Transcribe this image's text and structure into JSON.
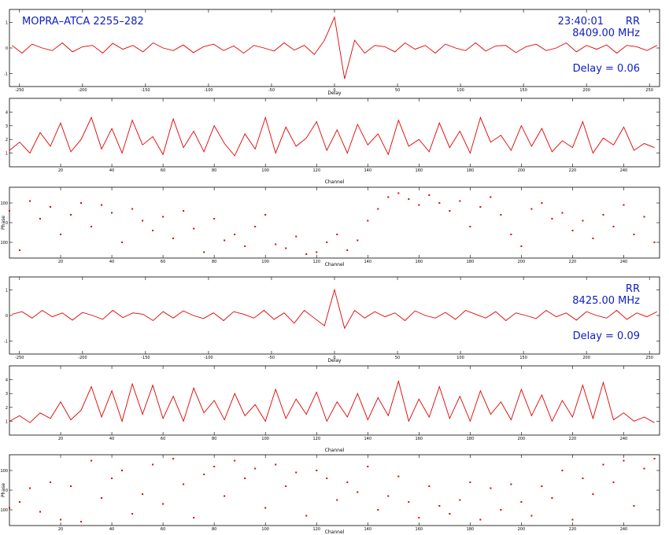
{
  "chart_data": [
    {
      "type": "line",
      "color": "#e00000",
      "xlabel": "Delay",
      "title": "MOPRA–ATCA 2255–282",
      "time": "23:40:01",
      "polarization": "RR",
      "frequency": "8409.00 MHz",
      "delay_label": "Delay = 0.06",
      "xlim": [
        -258,
        258
      ],
      "xticks": [
        -250,
        -200,
        -150,
        -100,
        -50,
        0,
        50,
        100,
        150,
        200,
        250
      ],
      "ylim": [
        -1.5,
        1.5
      ],
      "yticks": [
        -1,
        0,
        1
      ],
      "x": [
        -256,
        -248,
        -240,
        -232,
        -224,
        -216,
        -208,
        -200,
        -192,
        -184,
        -176,
        -168,
        -160,
        -152,
        -144,
        -136,
        -128,
        -120,
        -112,
        -104,
        -96,
        -88,
        -80,
        -72,
        -64,
        -56,
        -48,
        -40,
        -32,
        -24,
        -16,
        -8,
        0,
        8,
        16,
        24,
        32,
        40,
        48,
        56,
        64,
        72,
        80,
        88,
        96,
        104,
        112,
        120,
        128,
        136,
        144,
        152,
        160,
        168,
        176,
        184,
        192,
        200,
        208,
        216,
        224,
        232,
        240,
        248,
        256
      ],
      "values": [
        0.1,
        -0.2,
        0.15,
        0,
        -0.1,
        0.2,
        -0.15,
        0.05,
        0.1,
        -0.2,
        0.18,
        -0.05,
        0.1,
        -0.15,
        0.2,
        0,
        -0.1,
        0.12,
        -0.18,
        0.05,
        0.15,
        -0.1,
        0.08,
        -0.2,
        0.1,
        0,
        -0.12,
        0.2,
        -0.08,
        0.1,
        -0.25,
        0.3,
        1.2,
        -1.2,
        0.3,
        -0.2,
        0.1,
        0.05,
        -0.15,
        0.2,
        -0.05,
        0.1,
        -0.2,
        0.15,
        0,
        -0.1,
        0.2,
        -0.12,
        0.08,
        0.1,
        -0.18,
        0.05,
        0.15,
        -0.1,
        0,
        0.2,
        -0.15,
        0.1,
        -0.05,
        0.12,
        -0.2,
        0.1,
        0.05,
        -0.1,
        0.1
      ]
    },
    {
      "type": "line",
      "color": "#e00000",
      "xlabel": "Channel",
      "xlim": [
        0,
        254
      ],
      "xticks": [
        20,
        40,
        60,
        80,
        100,
        120,
        140,
        160,
        180,
        200,
        220,
        240
      ],
      "ylim": [
        0,
        5
      ],
      "yticks": [
        1,
        2,
        3,
        4
      ],
      "x": [
        0,
        4,
        8,
        12,
        16,
        20,
        24,
        28,
        32,
        36,
        40,
        44,
        48,
        52,
        56,
        60,
        64,
        68,
        72,
        76,
        80,
        84,
        88,
        92,
        96,
        100,
        104,
        108,
        112,
        116,
        120,
        124,
        128,
        132,
        136,
        140,
        144,
        148,
        152,
        156,
        160,
        164,
        168,
        172,
        176,
        180,
        184,
        188,
        192,
        196,
        200,
        204,
        208,
        212,
        216,
        220,
        224,
        228,
        232,
        236,
        240,
        244,
        248,
        252
      ],
      "values": [
        1.2,
        1.8,
        1.0,
        2.5,
        1.5,
        3.2,
        1.1,
        2.0,
        3.6,
        1.3,
        2.8,
        1.0,
        3.4,
        1.6,
        2.2,
        0.9,
        3.5,
        1.4,
        2.6,
        1.1,
        3.0,
        1.7,
        0.8,
        2.4,
        1.3,
        3.6,
        1.0,
        2.9,
        1.5,
        2.1,
        3.3,
        1.2,
        2.7,
        1.0,
        3.1,
        1.6,
        2.4,
        0.9,
        3.4,
        1.5,
        2.0,
        1.1,
        3.2,
        1.4,
        2.6,
        1.0,
        3.6,
        1.8,
        2.3,
        1.2,
        3.0,
        1.5,
        2.8,
        1.1,
        1.9,
        1.4,
        3.3,
        1.0,
        2.1,
        1.6,
        2.9,
        1.2,
        1.7,
        1.4
      ]
    },
    {
      "type": "scatter",
      "color": "#e00000",
      "xlabel": "Channel",
      "ylabel": "Phase",
      "xlim": [
        0,
        254
      ],
      "xticks": [
        20,
        40,
        60,
        80,
        100,
        120,
        140,
        160,
        180,
        200,
        220,
        240
      ],
      "ylim": [
        -180,
        180
      ],
      "yticks": [
        -100,
        0,
        100
      ],
      "x": [
        0,
        4,
        8,
        12,
        16,
        20,
        24,
        28,
        32,
        36,
        40,
        44,
        48,
        52,
        56,
        60,
        64,
        68,
        72,
        76,
        80,
        84,
        88,
        92,
        96,
        100,
        104,
        108,
        112,
        116,
        120,
        124,
        128,
        132,
        136,
        140,
        144,
        148,
        152,
        156,
        160,
        164,
        168,
        172,
        176,
        180,
        184,
        188,
        192,
        196,
        200,
        204,
        208,
        212,
        216,
        220,
        224,
        228,
        232,
        236,
        240,
        244,
        248,
        252
      ],
      "values": [
        60,
        -140,
        110,
        20,
        80,
        -60,
        40,
        100,
        -20,
        90,
        50,
        -100,
        70,
        10,
        -40,
        30,
        -80,
        60,
        -30,
        -150,
        20,
        -90,
        -60,
        -120,
        -20,
        40,
        -110,
        -130,
        -70,
        -160,
        -150,
        -100,
        -60,
        -140,
        -90,
        10,
        70,
        130,
        150,
        120,
        90,
        140,
        100,
        60,
        110,
        -20,
        80,
        130,
        40,
        -60,
        -120,
        70,
        100,
        20,
        50,
        -40,
        10,
        -80,
        40,
        -20,
        90,
        -60,
        30,
        -100
      ]
    },
    {
      "type": "line",
      "color": "#e00000",
      "xlabel": "Delay",
      "polarization": "RR",
      "frequency": "8425.00 MHz",
      "delay_label": "Delay = 0.09",
      "xlim": [
        -258,
        258
      ],
      "xticks": [
        -250,
        -200,
        -150,
        -100,
        -50,
        0,
        50,
        100,
        150,
        200,
        250
      ],
      "ylim": [
        -1.5,
        1.5
      ],
      "yticks": [
        -1,
        0,
        1
      ],
      "x": [
        -256,
        -248,
        -240,
        -232,
        -224,
        -216,
        -208,
        -200,
        -192,
        -184,
        -176,
        -168,
        -160,
        -152,
        -144,
        -136,
        -128,
        -120,
        -112,
        -104,
        -96,
        -88,
        -80,
        -72,
        -64,
        -56,
        -48,
        -40,
        -32,
        -24,
        -16,
        -8,
        0,
        8,
        16,
        24,
        32,
        40,
        48,
        56,
        64,
        72,
        80,
        88,
        96,
        104,
        112,
        120,
        128,
        136,
        144,
        152,
        160,
        168,
        176,
        184,
        192,
        200,
        208,
        216,
        224,
        232,
        240,
        248,
        256
      ],
      "values": [
        0.05,
        0.15,
        -0.1,
        0.2,
        -0.05,
        0.1,
        -0.18,
        0.12,
        0,
        -0.15,
        0.2,
        -0.08,
        0.1,
        0.05,
        -0.2,
        0.15,
        -0.1,
        0.18,
        0,
        -0.12,
        0.1,
        -0.2,
        0.15,
        0.05,
        -0.1,
        0.2,
        -0.15,
        0.1,
        -0.3,
        0.2,
        -0.1,
        -0.4,
        1.0,
        -0.5,
        0.2,
        -0.1,
        0.15,
        -0.05,
        0.1,
        -0.2,
        0.18,
        0,
        -0.1,
        0.12,
        -0.15,
        0.2,
        0.05,
        -0.1,
        0.15,
        -0.2,
        0.1,
        0,
        -0.12,
        0.2,
        -0.05,
        0.1,
        -0.18,
        0.15,
        0,
        -0.1,
        0.2,
        -0.15,
        0.1,
        -0.05,
        0.15
      ]
    },
    {
      "type": "line",
      "color": "#e00000",
      "xlabel": "Channel",
      "xlim": [
        0,
        254
      ],
      "xticks": [
        20,
        40,
        60,
        80,
        100,
        120,
        140,
        160,
        180,
        200,
        220,
        240
      ],
      "ylim": [
        0,
        5
      ],
      "yticks": [
        1,
        2,
        3,
        4
      ],
      "x": [
        0,
        4,
        8,
        12,
        16,
        20,
        24,
        28,
        32,
        36,
        40,
        44,
        48,
        52,
        56,
        60,
        64,
        68,
        72,
        76,
        80,
        84,
        88,
        92,
        96,
        100,
        104,
        108,
        112,
        116,
        120,
        124,
        128,
        132,
        136,
        140,
        144,
        148,
        152,
        156,
        160,
        164,
        168,
        172,
        176,
        180,
        184,
        188,
        192,
        196,
        200,
        204,
        208,
        212,
        216,
        220,
        224,
        228,
        232,
        236,
        240,
        244,
        248,
        252
      ],
      "values": [
        1.0,
        1.4,
        0.9,
        1.6,
        1.2,
        2.4,
        1.1,
        1.8,
        3.5,
        1.3,
        3.2,
        1.0,
        3.7,
        1.5,
        3.6,
        1.2,
        2.8,
        1.0,
        3.4,
        1.6,
        2.5,
        1.1,
        3.0,
        1.4,
        2.2,
        1.0,
        3.3,
        1.2,
        2.6,
        1.5,
        3.1,
        1.0,
        2.4,
        1.3,
        3.0,
        1.1,
        2.7,
        1.4,
        3.9,
        1.0,
        2.6,
        1.3,
        3.5,
        1.2,
        2.8,
        1.0,
        3.2,
        1.5,
        2.4,
        1.1,
        3.3,
        1.4,
        2.9,
        1.0,
        2.5,
        1.3,
        3.6,
        1.2,
        3.8,
        1.1,
        1.6,
        1.0,
        1.3,
        0.9
      ]
    },
    {
      "type": "scatter",
      "color": "#e00000",
      "xlabel": "Channel",
      "ylabel": "Phase",
      "xlim": [
        0,
        254
      ],
      "xticks": [
        20,
        40,
        60,
        80,
        100,
        120,
        140,
        160,
        180,
        200,
        220,
        240
      ],
      "ylim": [
        -180,
        180
      ],
      "yticks": [
        -100,
        0,
        100
      ],
      "x": [
        0,
        4,
        8,
        12,
        16,
        20,
        24,
        28,
        32,
        36,
        40,
        44,
        48,
        52,
        56,
        60,
        64,
        68,
        72,
        76,
        80,
        84,
        88,
        92,
        96,
        100,
        104,
        108,
        112,
        116,
        120,
        124,
        128,
        132,
        136,
        140,
        144,
        148,
        152,
        156,
        160,
        164,
        168,
        172,
        176,
        180,
        184,
        188,
        192,
        196,
        200,
        204,
        208,
        212,
        216,
        220,
        224,
        228,
        232,
        236,
        240,
        244,
        248,
        252
      ],
      "values": [
        -90,
        -60,
        10,
        -110,
        40,
        -150,
        20,
        -160,
        150,
        -40,
        60,
        100,
        -120,
        -20,
        130,
        -70,
        160,
        30,
        -140,
        80,
        120,
        -30,
        150,
        60,
        110,
        -90,
        130,
        20,
        90,
        -130,
        100,
        60,
        -50,
        40,
        -10,
        120,
        -100,
        -30,
        70,
        -60,
        -140,
        20,
        -80,
        -120,
        -50,
        40,
        -150,
        10,
        -100,
        30,
        -60,
        -130,
        20,
        -40,
        100,
        -150,
        60,
        -20,
        130,
        40,
        150,
        -80,
        110,
        160
      ]
    }
  ]
}
